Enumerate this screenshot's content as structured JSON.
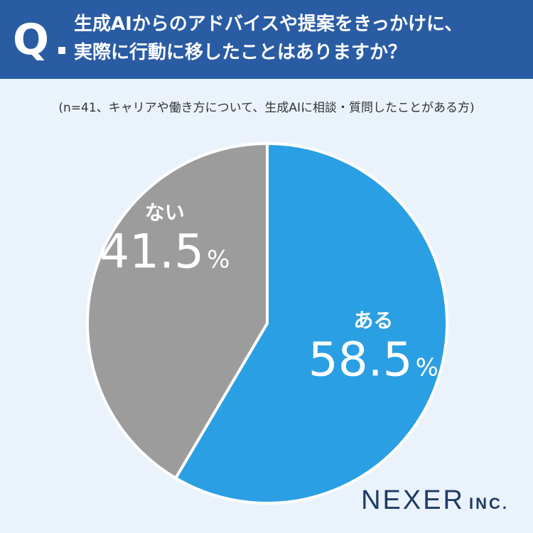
{
  "header": {
    "q_mark": "Q",
    "question_line1": "生成AIからのアドバイスや提案をきっかけに、",
    "question_line2": "実際に行動に移したことはありますか？"
  },
  "sample_note": "(n=41、キャリアや働き方について、生成AIに相談・質問したことがある方)",
  "chart_data": {
    "type": "pie",
    "title": "生成AIからのアドバイスや提案をきっかけに、実際に行動に移したことはありますか？",
    "slices": [
      {
        "label": "ある",
        "value": 58.5,
        "display": "58.5",
        "color": "#2b9fe3"
      },
      {
        "label": "ない",
        "value": 41.5,
        "display": "41.5",
        "color": "#9c9c9c"
      }
    ],
    "unit": "%",
    "start": "12 o'clock",
    "direction": "clockwise"
  },
  "brand": {
    "name": "NEXER",
    "suffix": "INC."
  }
}
